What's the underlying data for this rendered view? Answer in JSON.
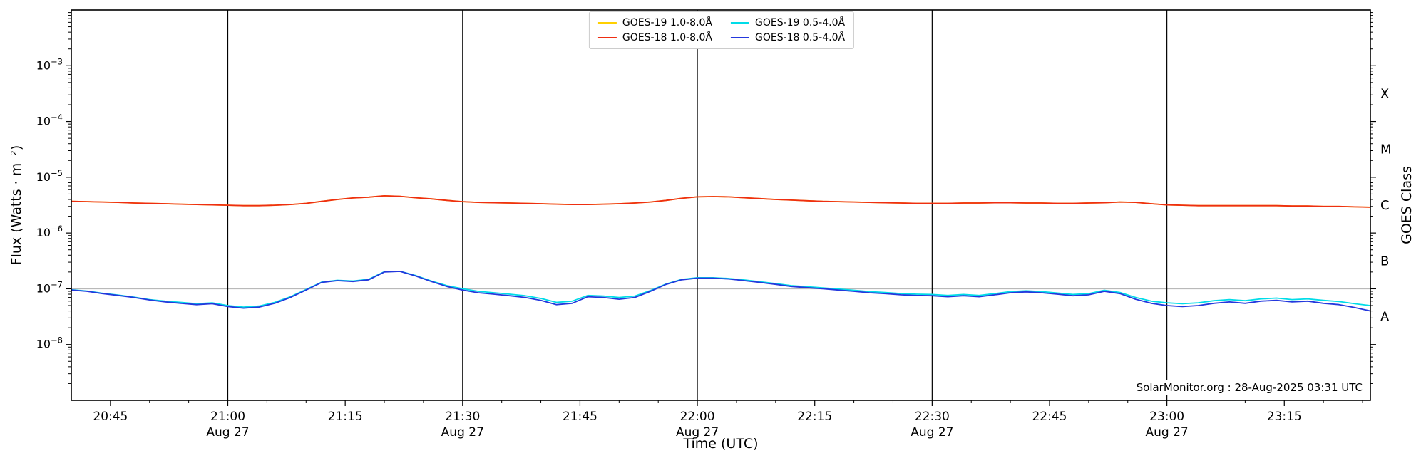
{
  "chart_data": {
    "type": "line",
    "title": "",
    "xlabel": "Time (UTC)",
    "ylabel": "Flux (Watts · m⁻²)",
    "ylabel_right": "GOES Class",
    "credit": "SolarMonitor.org : 28-Aug-2025 03:31 UTC",
    "date_label": "Aug 27",
    "x_start_time": "20:40",
    "x_end_time": "23:26",
    "x_domain_minutes": [
      0,
      166
    ],
    "sample_step_minutes": 2,
    "x_minor_tick_minutes": 5,
    "y_exponent_range": [
      -9,
      -2
    ],
    "y_tick_exponents": [
      -3,
      -4,
      -5,
      -6,
      -7,
      -8
    ],
    "y_gridline": {
      "value": 1e-07,
      "color": "#b9b9b9"
    },
    "x_ticks": [
      {
        "t": 5,
        "label": "20:45"
      },
      {
        "t": 20,
        "label": "21:00",
        "sub": "Aug 27"
      },
      {
        "t": 35,
        "label": "21:15"
      },
      {
        "t": 50,
        "label": "21:30",
        "sub": "Aug 27"
      },
      {
        "t": 65,
        "label": "21:45"
      },
      {
        "t": 80,
        "label": "22:00",
        "sub": "Aug 27"
      },
      {
        "t": 95,
        "label": "22:15"
      },
      {
        "t": 110,
        "label": "22:30",
        "sub": "Aug 27"
      },
      {
        "t": 125,
        "label": "22:45"
      },
      {
        "t": 140,
        "label": "23:00",
        "sub": "Aug 27"
      },
      {
        "t": 155,
        "label": "23:15"
      }
    ],
    "day_line_minutes": [
      20,
      50,
      80,
      110,
      140
    ],
    "goes_classes": [
      {
        "label": "X",
        "exp": -3.5
      },
      {
        "label": "M",
        "exp": -4.5
      },
      {
        "label": "C",
        "exp": -5.5
      },
      {
        "label": "B",
        "exp": -6.5
      },
      {
        "label": "A",
        "exp": -7.5
      }
    ],
    "legend_position": "top-center",
    "grid": false,
    "series": [
      {
        "name": "GOES-19 1.0-8.0Å",
        "color": "#ffd000",
        "value_scale": 1e-06,
        "values": [
          3.7,
          3.65,
          3.6,
          3.55,
          3.45,
          3.4,
          3.35,
          3.3,
          3.25,
          3.2,
          3.15,
          3.1,
          3.1,
          3.15,
          3.25,
          3.4,
          3.7,
          4.0,
          4.25,
          4.4,
          4.65,
          4.55,
          4.3,
          4.1,
          3.85,
          3.65,
          3.55,
          3.5,
          3.45,
          3.4,
          3.35,
          3.3,
          3.25,
          3.25,
          3.3,
          3.35,
          3.45,
          3.6,
          3.85,
          4.2,
          4.45,
          4.5,
          4.45,
          4.3,
          4.15,
          4.0,
          3.9,
          3.8,
          3.7,
          3.65,
          3.6,
          3.55,
          3.5,
          3.45,
          3.4,
          3.4,
          3.4,
          3.45,
          3.45,
          3.5,
          3.5,
          3.45,
          3.45,
          3.4,
          3.4,
          3.45,
          3.5,
          3.6,
          3.55,
          3.35,
          3.2,
          3.15,
          3.1,
          3.1,
          3.1,
          3.1,
          3.1,
          3.1,
          3.05,
          3.05,
          3.0,
          3.0,
          2.95,
          2.9
        ]
      },
      {
        "name": "GOES-18 1.0-8.0Å",
        "color": "#ee2e12",
        "value_scale": 1e-06,
        "values": [
          3.7,
          3.65,
          3.6,
          3.55,
          3.45,
          3.4,
          3.35,
          3.3,
          3.25,
          3.2,
          3.15,
          3.1,
          3.1,
          3.15,
          3.25,
          3.4,
          3.7,
          4.0,
          4.25,
          4.4,
          4.65,
          4.55,
          4.3,
          4.1,
          3.85,
          3.65,
          3.55,
          3.5,
          3.45,
          3.4,
          3.35,
          3.3,
          3.25,
          3.25,
          3.3,
          3.35,
          3.45,
          3.6,
          3.85,
          4.2,
          4.45,
          4.5,
          4.45,
          4.3,
          4.15,
          4.0,
          3.9,
          3.8,
          3.7,
          3.65,
          3.6,
          3.55,
          3.5,
          3.45,
          3.4,
          3.4,
          3.4,
          3.45,
          3.45,
          3.5,
          3.5,
          3.45,
          3.45,
          3.4,
          3.4,
          3.45,
          3.5,
          3.6,
          3.55,
          3.35,
          3.2,
          3.15,
          3.1,
          3.1,
          3.1,
          3.1,
          3.1,
          3.1,
          3.05,
          3.05,
          3.0,
          3.0,
          2.95,
          2.9
        ]
      },
      {
        "name": "GOES-19 0.5-4.0Å",
        "color": "#00dce8",
        "value_scale": 1e-08,
        "values": [
          9.6,
          9.1,
          8.3,
          7.7,
          7.1,
          6.4,
          6.0,
          5.7,
          5.4,
          5.6,
          5.0,
          4.7,
          4.9,
          5.7,
          7.2,
          9.7,
          13.2,
          14.2,
          13.8,
          14.8,
          20.2,
          20.6,
          17.3,
          13.8,
          11.4,
          10.0,
          9.0,
          8.5,
          8.0,
          7.5,
          6.7,
          5.7,
          6.0,
          7.6,
          7.4,
          7.0,
          7.4,
          9.3,
          12.2,
          14.7,
          15.8,
          15.8,
          15.3,
          14.4,
          13.4,
          12.4,
          11.4,
          10.9,
          10.4,
          9.9,
          9.4,
          8.9,
          8.6,
          8.2,
          8.0,
          7.9,
          7.6,
          7.9,
          7.6,
          8.2,
          8.9,
          9.2,
          8.9,
          8.4,
          7.9,
          8.2,
          9.4,
          8.6,
          7.0,
          6.0,
          5.6,
          5.4,
          5.6,
          6.1,
          6.4,
          6.1,
          6.6,
          6.8,
          6.4,
          6.6,
          6.2,
          5.9,
          5.4,
          5.0
        ]
      },
      {
        "name": "GOES-18 0.5-4.0Å",
        "color": "#2438dd",
        "value_scale": 1e-08,
        "values": [
          9.5,
          9.0,
          8.2,
          7.6,
          7.0,
          6.3,
          5.8,
          5.5,
          5.2,
          5.4,
          4.8,
          4.5,
          4.7,
          5.5,
          7.0,
          9.5,
          13.0,
          14.0,
          13.5,
          14.5,
          20.0,
          20.5,
          17.0,
          13.5,
          11.0,
          9.5,
          8.5,
          8.0,
          7.5,
          7.0,
          6.2,
          5.2,
          5.5,
          7.2,
          7.0,
          6.5,
          7.0,
          9.0,
          12.0,
          14.5,
          15.5,
          15.5,
          15.0,
          14.0,
          13.0,
          12.0,
          11.0,
          10.5,
          10.0,
          9.5,
          9.0,
          8.5,
          8.2,
          7.8,
          7.6,
          7.5,
          7.2,
          7.5,
          7.2,
          7.8,
          8.5,
          8.8,
          8.5,
          8.0,
          7.5,
          7.8,
          9.0,
          8.2,
          6.5,
          5.5,
          5.0,
          4.8,
          5.0,
          5.5,
          5.8,
          5.5,
          6.0,
          6.2,
          5.8,
          6.0,
          5.5,
          5.2,
          4.6,
          4.0
        ]
      }
    ]
  }
}
